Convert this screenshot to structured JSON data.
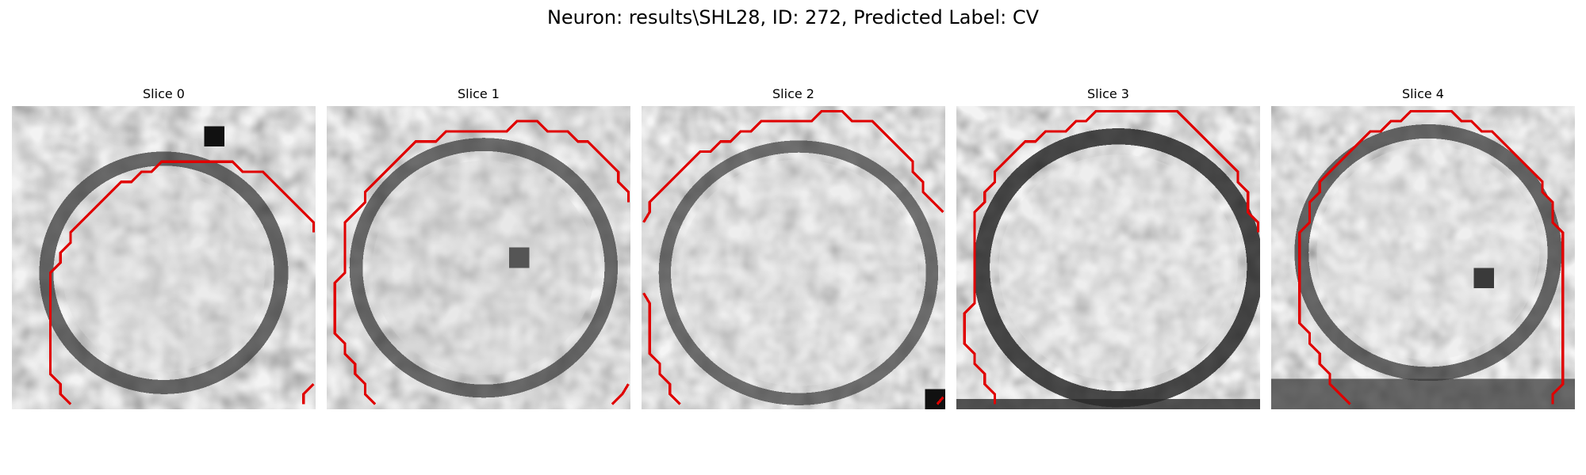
{
  "figure": {
    "title": "Neuron: results\\SHL28, ID: 272, Predicted Label: CV"
  },
  "panels": [
    {
      "title": "Slice 0"
    },
    {
      "title": "Slice 1"
    },
    {
      "title": "Slice 2"
    },
    {
      "title": "Slice 3"
    },
    {
      "title": "Slice 4"
    }
  ],
  "colors": {
    "contour": "#e00000",
    "background": "#ffffff"
  }
}
